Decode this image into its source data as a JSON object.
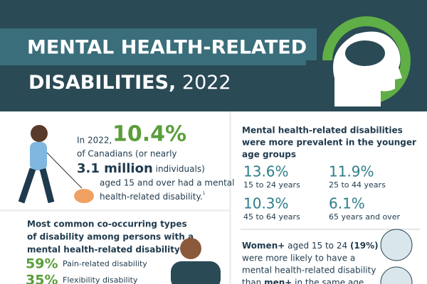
{
  "header": {
    "title_line1": "MENTAL HEALTH-RELATED",
    "title_line2": "DISABILITIES,",
    "year": "2022"
  },
  "overview": {
    "lead": "In 2022,",
    "rate": "10.4%",
    "line2": "of Canadians (or nearly",
    "count": "3.1 million",
    "count_unit": "individuals)",
    "line4": "aged 15 and over had a mental",
    "line5": "health-related disability.",
    "footnote": "1"
  },
  "age_groups": {
    "heading": [
      "Mental health-related disabilities",
      "were more prevalent in the younger",
      "age groups"
    ],
    "items": [
      {
        "rate": "13.6%",
        "label": "15 to 24 years"
      },
      {
        "rate": "11.9%",
        "label": "25 to 44 years"
      },
      {
        "rate": "10.3%",
        "label": "45 to 64 years"
      },
      {
        "rate": "6.1%",
        "label": "65 years and over"
      }
    ]
  },
  "co_occurring": {
    "heading": [
      "Most common co-occurring types",
      "of disability among persons with a",
      "mental health-related disability"
    ],
    "items": [
      {
        "rate": "59%",
        "label": "Pain-related disability"
      },
      {
        "rate": "35%",
        "label": "Flexibility disability"
      }
    ]
  },
  "gender": {
    "women": "Women+",
    "aged": " aged 15 to 24 ",
    "rate": "(19%)",
    "line2": "were more likely to have a",
    "line3": "mental health-related disability",
    "than": "than ",
    "men": "men+",
    "rest": " in the same age"
  }
}
